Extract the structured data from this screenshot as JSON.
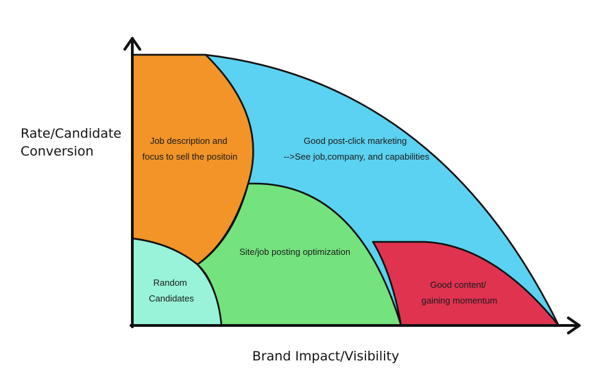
{
  "diagram": {
    "y_axis_label_lines": [
      "Rate/Candidate",
      "Conversion"
    ],
    "x_axis_label": "Brand Impact/Visibility",
    "regions": [
      {
        "id": "post-click",
        "lines": [
          "Good post-click marketing",
          "-->See job,company, and capabilities"
        ],
        "color": "#5bd2f1"
      },
      {
        "id": "job-description",
        "lines": [
          "Job description and",
          "focus to sell the positoin"
        ],
        "color": "#f29428"
      },
      {
        "id": "site-optimization",
        "lines": [
          "Site/job posting optimization"
        ],
        "color": "#74e37e"
      },
      {
        "id": "good-content",
        "lines": [
          "Good content/",
          "gaining momentum"
        ],
        "color": "#df3350"
      },
      {
        "id": "random-candidates",
        "lines": [
          "Random",
          "Candidates"
        ],
        "color": "#98f3d8"
      }
    ],
    "outline_color": "#111111"
  }
}
